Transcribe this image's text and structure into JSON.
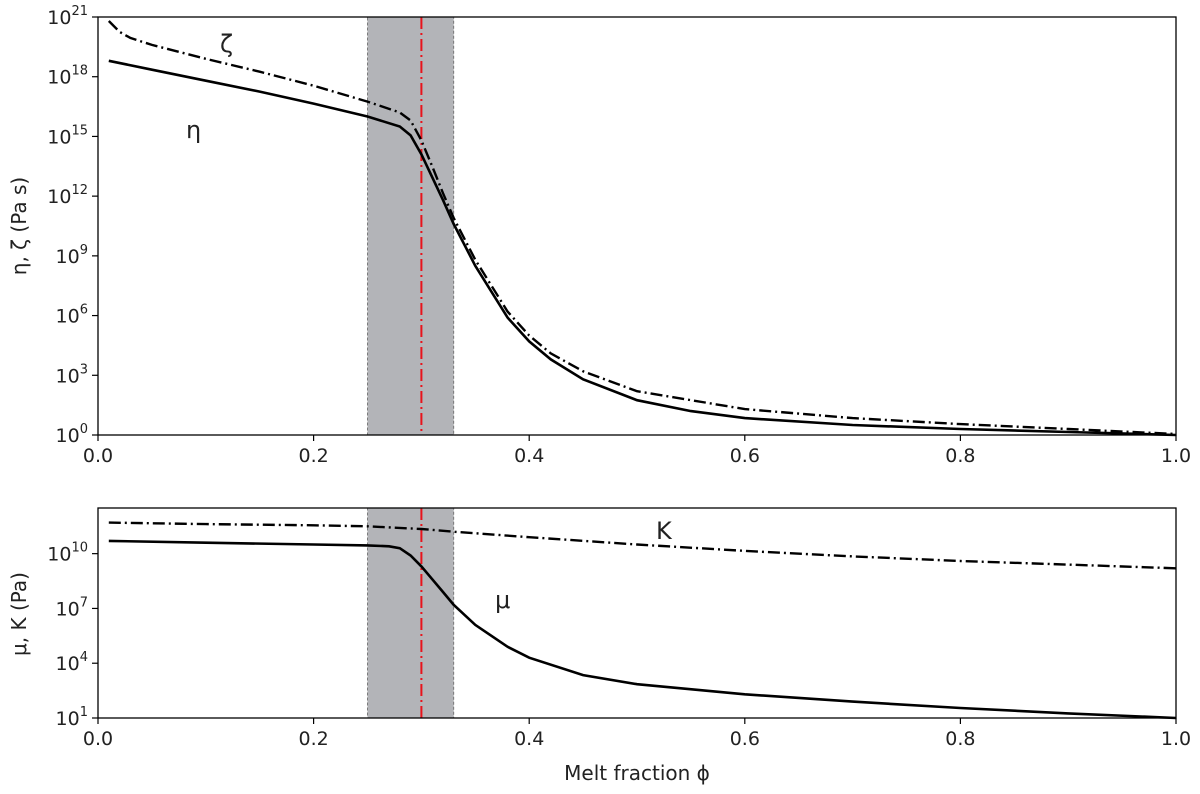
{
  "chart_data": [
    {
      "type": "line",
      "panel": "top",
      "ylabel": "η, ζ (Pa s)",
      "yscale": "log",
      "ylim_exp": [
        0,
        21
      ],
      "xlim": [
        0,
        1
      ],
      "xticks": [
        "0.0",
        "0.2",
        "0.4",
        "0.6",
        "0.8",
        "1.0"
      ],
      "yticks": [
        {
          "base": "10",
          "exp": "0",
          "value_exp": 0
        },
        {
          "base": "10",
          "exp": "3",
          "value_exp": 3
        },
        {
          "base": "10",
          "exp": "6",
          "value_exp": 6
        },
        {
          "base": "10",
          "exp": "9",
          "value_exp": 9
        },
        {
          "base": "10",
          "exp": "12",
          "value_exp": 12
        },
        {
          "base": "10",
          "exp": "15",
          "value_exp": 15
        },
        {
          "base": "10",
          "exp": "18",
          "value_exp": 18
        },
        {
          "base": "10",
          "exp": "21",
          "value_exp": 21
        }
      ],
      "shaded_band": [
        0.25,
        0.33
      ],
      "reference_line_x": 0.3,
      "reference_color": "#e8131b",
      "band_color": "#b3b4b8",
      "series": [
        {
          "name": "η",
          "style": "solid",
          "x": [
            0.01,
            0.05,
            0.1,
            0.15,
            0.2,
            0.25,
            0.28,
            0.29,
            0.3,
            0.31,
            0.32,
            0.33,
            0.35,
            0.38,
            0.4,
            0.42,
            0.45,
            0.5,
            0.55,
            0.6,
            0.7,
            0.8,
            0.9,
            1.0
          ],
          "log10_values": [
            18.8,
            18.35,
            17.8,
            17.25,
            16.65,
            16.0,
            15.5,
            15.05,
            14.1,
            12.95,
            11.8,
            10.6,
            8.5,
            5.9,
            4.7,
            3.8,
            2.8,
            1.75,
            1.2,
            0.85,
            0.5,
            0.3,
            0.15,
            0.0
          ]
        },
        {
          "name": "ζ",
          "style": "dashdot",
          "x": [
            0.01,
            0.02,
            0.03,
            0.05,
            0.1,
            0.15,
            0.2,
            0.25,
            0.28,
            0.29,
            0.3,
            0.31,
            0.32,
            0.33,
            0.35,
            0.38,
            0.4,
            0.42,
            0.45,
            0.5,
            0.6,
            0.7,
            0.8,
            0.9,
            1.0
          ],
          "log10_values": [
            20.8,
            20.25,
            19.95,
            19.6,
            18.9,
            18.25,
            17.55,
            16.75,
            16.2,
            15.8,
            14.8,
            13.5,
            12.15,
            10.9,
            8.8,
            6.2,
            5.0,
            4.1,
            3.2,
            2.2,
            1.3,
            0.85,
            0.55,
            0.3,
            0.05
          ]
        }
      ],
      "annotations": [
        "ζ",
        "η"
      ]
    },
    {
      "type": "line",
      "panel": "bottom",
      "ylabel": "μ, K (Pa)",
      "xlabel": "Melt fraction ϕ",
      "yscale": "log",
      "ylim_exp": [
        1,
        12.5
      ],
      "xlim": [
        0,
        1
      ],
      "xticks": [
        "0.0",
        "0.2",
        "0.4",
        "0.6",
        "0.8",
        "1.0"
      ],
      "yticks": [
        {
          "base": "10",
          "exp": "1",
          "value_exp": 1
        },
        {
          "base": "10",
          "exp": "4",
          "value_exp": 4
        },
        {
          "base": "10",
          "exp": "7",
          "value_exp": 7
        },
        {
          "base": "10",
          "exp": "10",
          "value_exp": 10
        }
      ],
      "shaded_band": [
        0.25,
        0.33
      ],
      "reference_line_x": 0.3,
      "series": [
        {
          "name": "K",
          "style": "dashdot",
          "x": [
            0.01,
            0.1,
            0.2,
            0.25,
            0.3,
            0.33,
            0.4,
            0.5,
            0.6,
            0.7,
            0.8,
            0.9,
            1.0
          ],
          "log10_values": [
            11.7,
            11.62,
            11.55,
            11.5,
            11.35,
            11.2,
            10.9,
            10.5,
            10.15,
            9.85,
            9.6,
            9.4,
            9.2
          ]
        },
        {
          "name": "μ",
          "style": "solid",
          "x": [
            0.01,
            0.1,
            0.2,
            0.25,
            0.27,
            0.28,
            0.29,
            0.3,
            0.31,
            0.32,
            0.33,
            0.35,
            0.38,
            0.4,
            0.45,
            0.5,
            0.6,
            0.7,
            0.8,
            0.9,
            1.0
          ],
          "log10_values": [
            10.7,
            10.6,
            10.5,
            10.45,
            10.4,
            10.3,
            9.9,
            9.3,
            8.6,
            7.9,
            7.2,
            6.1,
            4.9,
            4.3,
            3.35,
            2.85,
            2.3,
            1.9,
            1.55,
            1.25,
            1.0
          ]
        }
      ],
      "annotations": [
        "K",
        "μ"
      ]
    }
  ]
}
